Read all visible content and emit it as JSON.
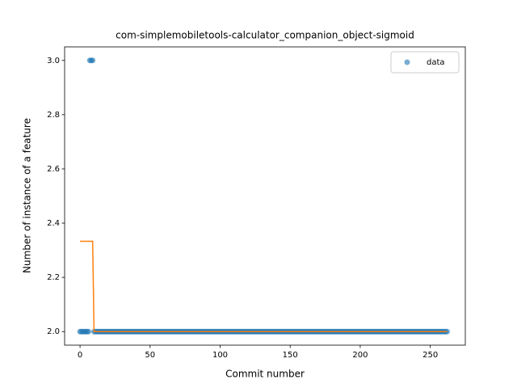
{
  "chart_data": {
    "type": "scatter",
    "title": "com-simplemobiletools-calculator_companion_object-sigmoid",
    "x_label": "Commit number",
    "y_label": "Number of instance of a feature",
    "x": [
      0,
      1,
      2,
      3,
      4,
      5,
      6,
      7,
      8,
      9,
      10,
      11,
      12,
      13,
      14,
      15,
      16,
      17,
      18,
      19,
      20,
      21,
      22,
      23,
      24,
      25,
      26,
      27,
      28,
      29,
      30,
      31,
      32,
      33,
      34,
      35,
      36,
      37,
      38,
      39,
      40,
      41,
      42,
      43,
      44,
      45,
      46,
      47,
      48,
      49,
      50,
      51,
      52,
      53,
      54,
      55,
      56,
      57,
      58,
      59,
      60,
      61,
      62,
      63,
      64,
      65,
      66,
      67,
      68,
      69,
      70,
      71,
      72,
      73,
      74,
      75,
      76,
      77,
      78,
      79,
      80,
      81,
      82,
      83,
      84,
      85,
      86,
      87,
      88,
      89,
      90,
      91,
      92,
      93,
      94,
      95,
      96,
      97,
      98,
      99,
      100,
      101,
      102,
      103,
      104,
      105,
      106,
      107,
      108,
      109,
      110,
      111,
      112,
      113,
      114,
      115,
      116,
      117,
      118,
      119,
      120,
      121,
      122,
      123,
      124,
      125,
      126,
      127,
      128,
      129,
      130,
      131,
      132,
      133,
      134,
      135,
      136,
      137,
      138,
      139,
      140,
      141,
      142,
      143,
      144,
      145,
      146,
      147,
      148,
      149,
      150,
      151,
      152,
      153,
      154,
      155,
      156,
      157,
      158,
      159,
      160,
      161,
      162,
      163,
      164,
      165,
      166,
      167,
      168,
      169,
      170,
      171,
      172,
      173,
      174,
      175,
      176,
      177,
      178,
      179,
      180,
      181,
      182,
      183,
      184,
      185,
      186,
      187,
      188,
      189,
      190,
      191,
      192,
      193,
      194,
      195,
      196,
      197,
      198,
      199,
      200,
      201,
      202,
      203,
      204,
      205,
      206,
      207,
      208,
      209,
      210,
      211,
      212,
      213,
      214,
      215,
      216,
      217,
      218,
      219,
      220,
      221,
      222,
      223,
      224,
      225,
      226,
      227,
      228,
      229,
      230,
      231,
      232,
      233,
      234,
      235,
      236,
      237,
      238,
      239,
      240,
      241,
      242,
      243,
      244,
      245,
      246,
      247,
      248,
      249,
      250,
      251,
      252,
      253,
      254,
      255,
      256,
      257,
      258,
      259,
      260,
      261,
      262
    ],
    "series": [
      {
        "name": "data",
        "type": "scatter",
        "color": "#1f77b4",
        "values": [
          2,
          2,
          2,
          2,
          2,
          2,
          2,
          3,
          3,
          3,
          2,
          2,
          2,
          2,
          2,
          2,
          2,
          2,
          2,
          2,
          2,
          2,
          2,
          2,
          2,
          2,
          2,
          2,
          2,
          2,
          2,
          2,
          2,
          2,
          2,
          2,
          2,
          2,
          2,
          2,
          2,
          2,
          2,
          2,
          2,
          2,
          2,
          2,
          2,
          2,
          2,
          2,
          2,
          2,
          2,
          2,
          2,
          2,
          2,
          2,
          2,
          2,
          2,
          2,
          2,
          2,
          2,
          2,
          2,
          2,
          2,
          2,
          2,
          2,
          2,
          2,
          2,
          2,
          2,
          2,
          2,
          2,
          2,
          2,
          2,
          2,
          2,
          2,
          2,
          2,
          2,
          2,
          2,
          2,
          2,
          2,
          2,
          2,
          2,
          2,
          2,
          2,
          2,
          2,
          2,
          2,
          2,
          2,
          2,
          2,
          2,
          2,
          2,
          2,
          2,
          2,
          2,
          2,
          2,
          2,
          2,
          2,
          2,
          2,
          2,
          2,
          2,
          2,
          2,
          2,
          2,
          2,
          2,
          2,
          2,
          2,
          2,
          2,
          2,
          2,
          2,
          2,
          2,
          2,
          2,
          2,
          2,
          2,
          2,
          2,
          2,
          2,
          2,
          2,
          2,
          2,
          2,
          2,
          2,
          2,
          2,
          2,
          2,
          2,
          2,
          2,
          2,
          2,
          2,
          2,
          2,
          2,
          2,
          2,
          2,
          2,
          2,
          2,
          2,
          2,
          2,
          2,
          2,
          2,
          2,
          2,
          2,
          2,
          2,
          2,
          2,
          2,
          2,
          2,
          2,
          2,
          2,
          2,
          2,
          2,
          2,
          2,
          2,
          2,
          2,
          2,
          2,
          2,
          2,
          2,
          2,
          2,
          2,
          2,
          2,
          2,
          2,
          2,
          2,
          2,
          2,
          2,
          2,
          2,
          2,
          2,
          2,
          2,
          2,
          2,
          2,
          2,
          2,
          2,
          2,
          2,
          2,
          2,
          2,
          2,
          2,
          2,
          2,
          2,
          2,
          2,
          2,
          2,
          2,
          2,
          2,
          2,
          2,
          2,
          2,
          2,
          2,
          2,
          2,
          2,
          2,
          2,
          2
        ]
      },
      {
        "type": "line",
        "color": "#ff7f0e",
        "values": [
          2.333,
          2.333,
          2.333,
          2.333,
          2.333,
          2.333,
          2.333,
          2.333,
          2.333,
          2.333,
          2,
          2,
          2,
          2,
          2,
          2,
          2,
          2,
          2,
          2,
          2,
          2,
          2,
          2,
          2,
          2,
          2,
          2,
          2,
          2,
          2,
          2,
          2,
          2,
          2,
          2,
          2,
          2,
          2,
          2,
          2,
          2,
          2,
          2,
          2,
          2,
          2,
          2,
          2,
          2,
          2,
          2,
          2,
          2,
          2,
          2,
          2,
          2,
          2,
          2,
          2,
          2,
          2,
          2,
          2,
          2,
          2,
          2,
          2,
          2,
          2,
          2,
          2,
          2,
          2,
          2,
          2,
          2,
          2,
          2,
          2,
          2,
          2,
          2,
          2,
          2,
          2,
          2,
          2,
          2,
          2,
          2,
          2,
          2,
          2,
          2,
          2,
          2,
          2,
          2,
          2,
          2,
          2,
          2,
          2,
          2,
          2,
          2,
          2,
          2,
          2,
          2,
          2,
          2,
          2,
          2,
          2,
          2,
          2,
          2,
          2,
          2,
          2,
          2,
          2,
          2,
          2,
          2,
          2,
          2,
          2,
          2,
          2,
          2,
          2,
          2,
          2,
          2,
          2,
          2,
          2,
          2,
          2,
          2,
          2,
          2,
          2,
          2,
          2,
          2,
          2,
          2,
          2,
          2,
          2,
          2,
          2,
          2,
          2,
          2,
          2,
          2,
          2,
          2,
          2,
          2,
          2,
          2,
          2,
          2,
          2,
          2,
          2,
          2,
          2,
          2,
          2,
          2,
          2,
          2,
          2,
          2,
          2,
          2,
          2,
          2,
          2,
          2,
          2,
          2,
          2,
          2,
          2,
          2,
          2,
          2,
          2,
          2,
          2,
          2,
          2,
          2,
          2,
          2,
          2,
          2,
          2,
          2,
          2,
          2,
          2,
          2,
          2,
          2,
          2,
          2,
          2,
          2,
          2,
          2,
          2,
          2,
          2,
          2,
          2,
          2,
          2,
          2,
          2,
          2,
          2,
          2,
          2,
          2,
          2,
          2,
          2,
          2,
          2,
          2,
          2,
          2,
          2,
          2,
          2,
          2,
          2,
          2,
          2,
          2,
          2,
          2,
          2,
          2,
          2,
          2,
          2,
          2,
          2,
          2,
          2,
          2,
          2
        ]
      }
    ],
    "xlim": [
      -11,
      275
    ],
    "ylim": [
      1.95,
      3.05
    ],
    "xticks": [
      0,
      50,
      100,
      150,
      200,
      250
    ],
    "yticks": [
      {
        "value": 2,
        "label": "2.0"
      },
      {
        "value": 2.2,
        "label": "2.2"
      },
      {
        "value": 2.4,
        "label": "2.4"
      },
      {
        "value": 2.6,
        "label": "2.6"
      },
      {
        "value": 2.8,
        "label": "2.8"
      },
      {
        "value": 3,
        "label": "3.0"
      }
    ],
    "legend": "upper right"
  }
}
